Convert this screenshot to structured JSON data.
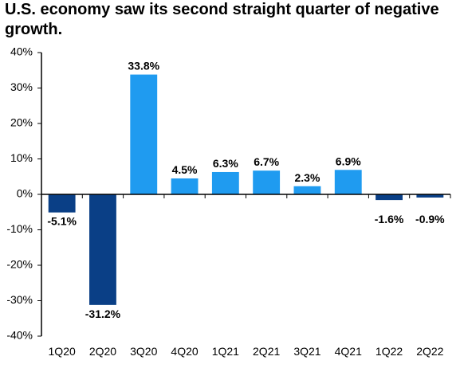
{
  "chart_data": {
    "type": "bar",
    "title": "U.S. economy saw its second straight quarter of negative growth.",
    "xlabel": "",
    "ylabel": "",
    "categories": [
      "1Q20",
      "2Q20",
      "3Q20",
      "4Q20",
      "1Q21",
      "2Q21",
      "3Q21",
      "4Q21",
      "1Q22",
      "2Q22"
    ],
    "values": [
      -5.1,
      -31.2,
      33.8,
      4.5,
      6.3,
      6.7,
      2.3,
      6.9,
      -1.6,
      -0.9
    ],
    "data_labels": [
      "-5.1%",
      "-31.2%",
      "33.8%",
      "4.5%",
      "6.3%",
      "6.7%",
      "2.3%",
      "6.9%",
      "-1.6%",
      "-0.9%"
    ],
    "ylim": [
      -40,
      40
    ],
    "yticks": [
      -40,
      -30,
      -20,
      -10,
      0,
      10,
      20,
      30,
      40
    ],
    "ytick_labels": [
      "-40%",
      "-30%",
      "-20%",
      "-10%",
      "0%",
      "10%",
      "20%",
      "30%",
      "40%"
    ],
    "grid": false,
    "legend": "none",
    "colors": {
      "positive": "#1f9bf0",
      "negative": "#0a3f86",
      "axis": "#000000"
    }
  }
}
